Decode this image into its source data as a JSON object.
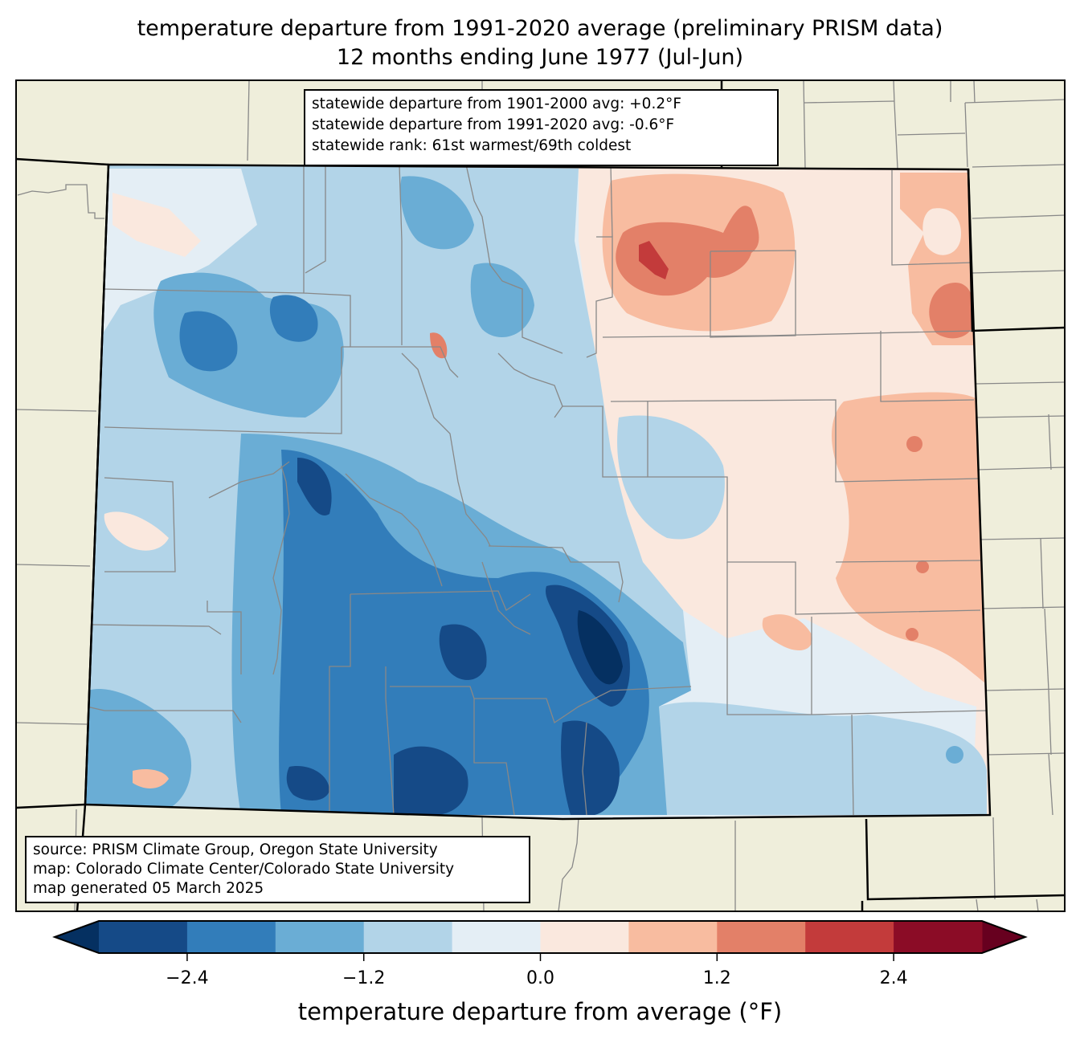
{
  "title": {
    "line1": "temperature departure from 1991-2020 average (preliminary PRISM data)",
    "line2": "12 months ending June 1977 (Jul-Jun)"
  },
  "stats_box": {
    "line1": "statewide departure from 1901-2000 avg: +0.2°F",
    "line2": "statewide departure from 1991-2020 avg: -0.6°F",
    "line3": "statewide rank: 61st warmest/69th coldest"
  },
  "credits_box": {
    "line1": "source: PRISM Climate Group, Oregon State University",
    "line2": "map: Colorado Climate Center/Colorado State University",
    "line3": "map generated 05 March 2025"
  },
  "colorbar": {
    "label": "temperature departure from average (°F)",
    "ticks": [
      "−2.4",
      "−1.2",
      "0.0",
      "1.2",
      "2.4"
    ],
    "tick_values": [
      -2.4,
      -1.2,
      0.0,
      1.2,
      2.4
    ],
    "range": [
      -3.0,
      3.0
    ],
    "step": 0.6,
    "under_color": "#053061",
    "over_color": "#67001f",
    "colors": [
      "#154a87",
      "#327dba",
      "#6aadd5",
      "#b2d4e8",
      "#e4eef5",
      "#fae8de",
      "#f8bca0",
      "#e38068",
      "#c33b3b",
      "#8b0c26"
    ]
  },
  "map_colors": {
    "background_land": "#efeedb",
    "state_border": "#000000",
    "county_border": "#888888"
  }
}
